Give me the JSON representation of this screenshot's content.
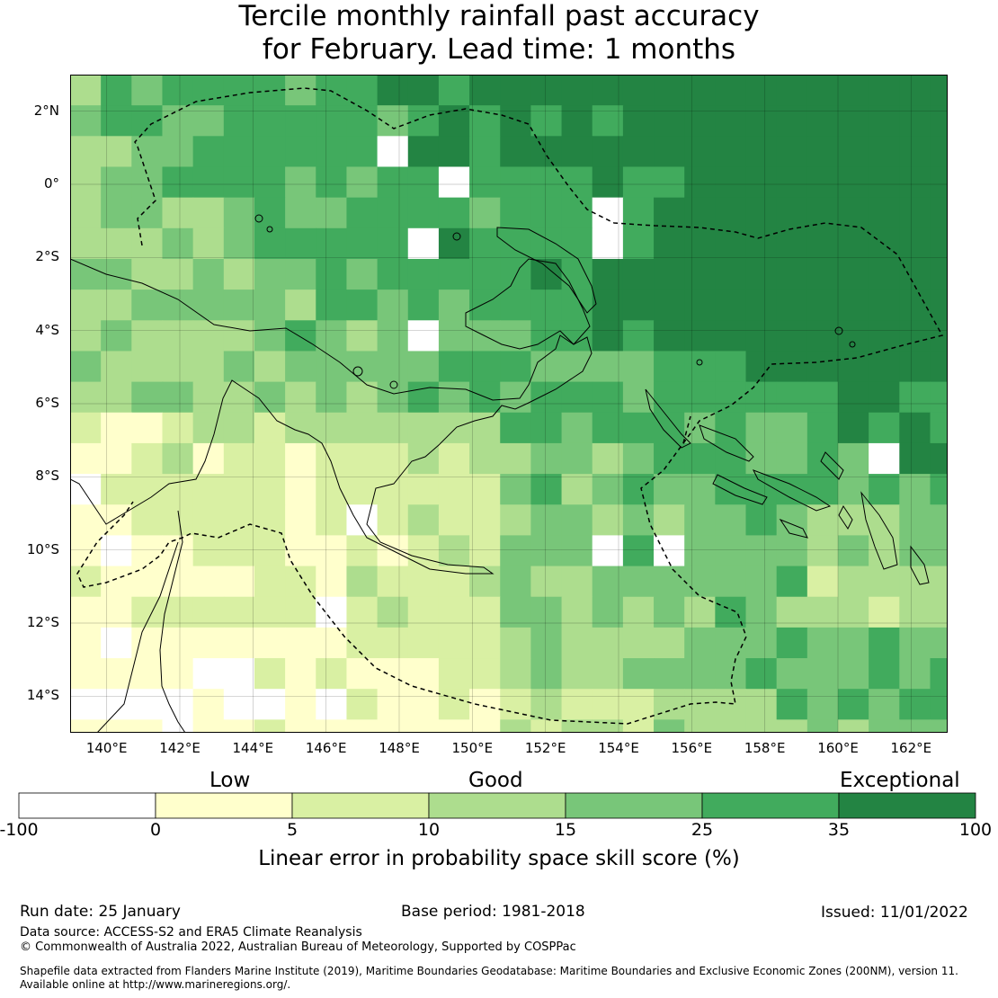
{
  "title_line1": "Tercile monthly rainfall past accuracy",
  "title_line2": "for February. Lead time: 1 months",
  "map": {
    "lon_range": [
      139,
      163
    ],
    "lat_range": [
      -15,
      3
    ],
    "lat_labels": [
      "2°N",
      "0°",
      "2°S",
      "4°S",
      "6°S",
      "8°S",
      "10°S",
      "12°S",
      "14°S"
    ],
    "lat_values": [
      2,
      0,
      -2,
      -4,
      -6,
      -8,
      -10,
      -12,
      -14
    ],
    "lon_labels": [
      "140°E",
      "142°E",
      "144°E",
      "146°E",
      "148°E",
      "150°E",
      "152°E",
      "154°E",
      "156°E",
      "158°E",
      "160°E",
      "162°E"
    ],
    "lon_values": [
      140,
      142,
      144,
      146,
      148,
      150,
      152,
      154,
      156,
      158,
      160,
      162
    ],
    "cell_size_deg": 0.84
  },
  "colorbar": {
    "categories": [
      "Low",
      "Good",
      "Exceptional"
    ],
    "ticks": [
      "-100",
      "0",
      "5",
      "10",
      "15",
      "25",
      "35",
      "100"
    ],
    "colors": [
      "#ffffff",
      "#ffffcc",
      "#d9f0a3",
      "#addd8e",
      "#78c679",
      "#41ab5d",
      "#238443"
    ],
    "label": "Linear error in probability space skill score (%)"
  },
  "footer": {
    "run_date": "Run date: 25 January",
    "base_period": "Base period: 1981-2018",
    "issued": "Issued: 11/01/2022",
    "data_source": "Data source: ACCESS-S2 and ERA5 Climate Reanalysis",
    "copyright": "© Commonwealth of Australia 2022, Australian Bureau of Meteorology, Supported by COSPPac",
    "shapefile_line1": "Shapefile data extracted from Flanders Marine Institute (2019), Maritime Boundaries Geodatabase: Maritime Boundaries and Exclusive Economic Zones (200NM), version 11.",
    "shapefile_line2": "Available online at http://www.marineregions.org/."
  }
}
